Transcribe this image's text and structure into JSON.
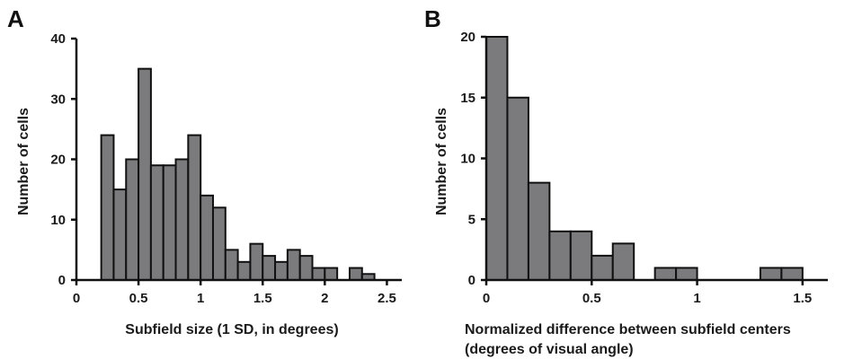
{
  "colors": {
    "bar_fill": "#7b7b7d",
    "bar_stroke": "#111111",
    "text": "#1a1a1a"
  },
  "chart_data": [
    {
      "type": "bar",
      "panel": "A",
      "xlabel": "Subfield size (1 SD, in degrees)",
      "xlabel2": "",
      "ylabel": "Number of cells",
      "xlim": [
        0,
        2.62
      ],
      "ylim": [
        0,
        40
      ],
      "xticks": [
        0,
        0.5,
        1,
        1.5,
        2,
        2.5
      ],
      "xtick_labels": [
        "0",
        "0.5",
        "1",
        "1.5",
        "2",
        "2.5"
      ],
      "yticks": [
        0,
        10,
        20,
        30,
        40
      ],
      "ytick_labels": [
        "0",
        "10",
        "20",
        "30",
        "40"
      ],
      "bin_width": 0.1,
      "bins": [
        {
          "x0": 0.2,
          "value": 24
        },
        {
          "x0": 0.3,
          "value": 15
        },
        {
          "x0": 0.4,
          "value": 20
        },
        {
          "x0": 0.5,
          "value": 35
        },
        {
          "x0": 0.6,
          "value": 19
        },
        {
          "x0": 0.7,
          "value": 19
        },
        {
          "x0": 0.8,
          "value": 20
        },
        {
          "x0": 0.9,
          "value": 24
        },
        {
          "x0": 1.0,
          "value": 14
        },
        {
          "x0": 1.1,
          "value": 12
        },
        {
          "x0": 1.2,
          "value": 5
        },
        {
          "x0": 1.3,
          "value": 3
        },
        {
          "x0": 1.4,
          "value": 6
        },
        {
          "x0": 1.5,
          "value": 4
        },
        {
          "x0": 1.6,
          "value": 3
        },
        {
          "x0": 1.7,
          "value": 5
        },
        {
          "x0": 1.8,
          "value": 4
        },
        {
          "x0": 1.9,
          "value": 2
        },
        {
          "x0": 2.0,
          "value": 2
        },
        {
          "x0": 2.2,
          "value": 2
        },
        {
          "x0": 2.3,
          "value": 1
        },
        {
          "x0": 2.4,
          "value": 0
        }
      ]
    },
    {
      "type": "bar",
      "panel": "B",
      "xlabel": "Normalized difference between subfield centers",
      "xlabel2": "(degrees of visual angle)",
      "ylabel": "Number of cells",
      "xlim": [
        0,
        1.62
      ],
      "ylim": [
        0,
        20
      ],
      "xticks": [
        0,
        0.5,
        1,
        1.5
      ],
      "xtick_labels": [
        "0",
        "0.5",
        "1",
        "1.5"
      ],
      "yticks": [
        0,
        5,
        10,
        15,
        20
      ],
      "ytick_labels": [
        "0",
        "5",
        "10",
        "15",
        "20"
      ],
      "bin_width": 0.1,
      "bins": [
        {
          "x0": 0.0,
          "value": 20
        },
        {
          "x0": 0.1,
          "value": 15
        },
        {
          "x0": 0.2,
          "value": 8
        },
        {
          "x0": 0.3,
          "value": 4
        },
        {
          "x0": 0.4,
          "value": 4
        },
        {
          "x0": 0.5,
          "value": 2
        },
        {
          "x0": 0.6,
          "value": 3
        },
        {
          "x0": 0.8,
          "value": 1
        },
        {
          "x0": 0.9,
          "value": 1
        },
        {
          "x0": 1.3,
          "value": 1
        },
        {
          "x0": 1.4,
          "value": 1
        }
      ]
    }
  ]
}
